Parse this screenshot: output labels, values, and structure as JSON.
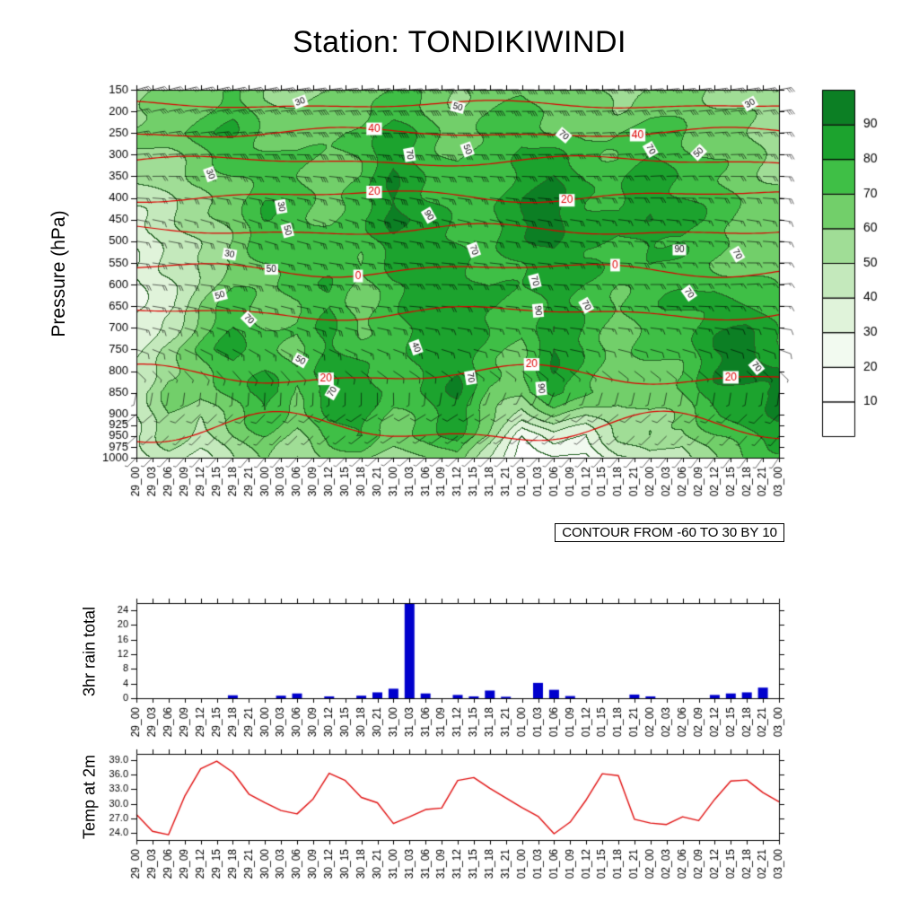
{
  "title": "Station: TONDIKIWINDI",
  "contour_note": "CONTOUR FROM -60 TO 30 BY 10",
  "axis": {
    "pressure_axis_label": "Pressure (hPa)",
    "rain_axis_label": "3hr rain total",
    "temp_axis_label": "Temp at 2m",
    "pressure_ticks": [
      150,
      200,
      250,
      300,
      350,
      400,
      450,
      500,
      550,
      600,
      650,
      700,
      750,
      800,
      850,
      900,
      925,
      950,
      975,
      1000
    ]
  },
  "colorbar": {
    "labels": [
      10,
      20,
      30,
      40,
      50,
      60,
      70,
      80,
      90
    ],
    "colors": [
      "#ffffff",
      "#ffffff",
      "#f2faf0",
      "#e0f3da",
      "#c4e9bc",
      "#a0dd96",
      "#72cf6a",
      "#3fbf46",
      "#1ca32e",
      "#0c7f24"
    ]
  },
  "chart_data": [
    {
      "type": "heatmap",
      "name": "humidity-time-pressure-section",
      "x": [
        "29_00",
        "29_03",
        "29_06",
        "29_09",
        "29_12",
        "29_15",
        "29_18",
        "29_21",
        "30_00",
        "30_03",
        "30_06",
        "30_09",
        "30_12",
        "30_15",
        "30_18",
        "30_21",
        "31_00",
        "31_03",
        "31_06",
        "31_09",
        "31_12",
        "31_15",
        "31_18",
        "31_21",
        "01_00",
        "01_03",
        "01_06",
        "01_09",
        "01_12",
        "01_15",
        "01_18",
        "01_21",
        "02_00",
        "02_03",
        "02_06",
        "02_09",
        "02_12",
        "02_15",
        "02_18",
        "02_21",
        "03_00"
      ],
      "x_index_step": 2,
      "pressure_levels_grid": [
        150,
        250,
        350,
        450,
        550,
        650,
        750,
        850,
        950,
        1000
      ],
      "fill_levels": [
        10,
        20,
        30,
        40,
        50,
        60,
        70,
        80,
        90
      ],
      "values": [
        [
          55,
          60,
          65,
          70,
          60,
          55,
          60,
          65,
          70,
          65,
          60,
          65,
          70,
          65,
          60,
          55,
          60,
          65,
          60,
          55,
          50
        ],
        [
          60,
          65,
          75,
          80,
          70,
          65,
          70,
          75,
          85,
          75,
          65,
          70,
          80,
          70,
          65,
          70,
          75,
          70,
          65,
          60,
          55
        ],
        [
          50,
          55,
          60,
          70,
          75,
          70,
          65,
          70,
          90,
          80,
          70,
          75,
          85,
          90,
          80,
          75,
          85,
          80,
          70,
          65,
          60
        ],
        [
          40,
          45,
          55,
          65,
          80,
          75,
          70,
          75,
          95,
          85,
          75,
          80,
          90,
          95,
          85,
          80,
          90,
          85,
          75,
          70,
          65
        ],
        [
          30,
          40,
          50,
          60,
          70,
          80,
          75,
          70,
          85,
          80,
          85,
          75,
          80,
          90,
          80,
          75,
          80,
          75,
          70,
          65,
          60
        ],
        [
          25,
          35,
          60,
          75,
          65,
          70,
          80,
          65,
          75,
          85,
          90,
          80,
          75,
          85,
          75,
          70,
          75,
          80,
          85,
          80,
          75
        ],
        [
          35,
          55,
          70,
          85,
          75,
          65,
          85,
          75,
          70,
          90,
          85,
          75,
          70,
          90,
          80,
          65,
          70,
          75,
          90,
          95,
          85
        ],
        [
          45,
          65,
          60,
          75,
          85,
          70,
          90,
          85,
          75,
          80,
          90,
          70,
          65,
          85,
          75,
          60,
          65,
          70,
          85,
          90,
          95
        ],
        [
          40,
          55,
          45,
          60,
          70,
          60,
          75,
          80,
          65,
          70,
          85,
          60,
          20,
          40,
          30,
          50,
          60,
          55,
          70,
          80,
          85
        ],
        [
          35,
          45,
          40,
          50,
          60,
          50,
          60,
          65,
          55,
          60,
          70,
          40,
          10,
          20,
          15,
          40,
          50,
          45,
          60,
          70,
          75
        ]
      ],
      "temp_contours": [
        {
          "value": -50,
          "pressure": 185,
          "amp": 4,
          "labels": []
        },
        {
          "value": -40,
          "pressure": 250,
          "amp": 5,
          "labels": [
            {
              "text": "40",
              "xf": 0.37
            },
            {
              "text": "40",
              "xf": 0.78
            }
          ]
        },
        {
          "value": -30,
          "pressure": 315,
          "amp": 5,
          "labels": []
        },
        {
          "value": -20,
          "pressure": 395,
          "amp": 6,
          "labels": [
            {
              "text": "20",
              "xf": 0.37
            },
            {
              "text": "20",
              "xf": 0.67
            }
          ]
        },
        {
          "value": -10,
          "pressure": 475,
          "amp": 6,
          "labels": []
        },
        {
          "value": 0,
          "pressure": 565,
          "amp": 7,
          "labels": [
            {
              "text": "0",
              "xf": 0.345
            },
            {
              "text": "0",
              "xf": 0.745
            }
          ]
        },
        {
          "value": 10,
          "pressure": 665,
          "amp": 7,
          "labels": []
        },
        {
          "value": 20,
          "pressure": 810,
          "amp": 10,
          "labels": [
            {
              "text": "20",
              "xf": 0.295
            },
            {
              "text": "20",
              "xf": 0.615
            },
            {
              "text": "20",
              "xf": 0.925
            }
          ]
        },
        {
          "value": 30,
          "pressure": 935,
          "amp": 16,
          "labels": []
        }
      ],
      "contour_labels": [
        {
          "text": "30",
          "xf": 0.255,
          "p": 178,
          "a": -20
        },
        {
          "text": "50",
          "xf": 0.5,
          "p": 190,
          "a": 15
        },
        {
          "text": "30",
          "xf": 0.955,
          "p": 182,
          "a": -30
        },
        {
          "text": "70",
          "xf": 0.665,
          "p": 255,
          "a": 40
        },
        {
          "text": "50",
          "xf": 0.515,
          "p": 288,
          "a": 70
        },
        {
          "text": "70",
          "xf": 0.425,
          "p": 300,
          "a": 80
        },
        {
          "text": "70",
          "xf": 0.8,
          "p": 288,
          "a": 60
        },
        {
          "text": "50",
          "xf": 0.875,
          "p": 295,
          "a": -45
        },
        {
          "text": "30",
          "xf": 0.115,
          "p": 345,
          "a": 70
        },
        {
          "text": "30",
          "xf": 0.225,
          "p": 420,
          "a": 80
        },
        {
          "text": "50",
          "xf": 0.235,
          "p": 475,
          "a": 75
        },
        {
          "text": "90",
          "xf": 0.455,
          "p": 440,
          "a": 60
        },
        {
          "text": "30",
          "xf": 0.145,
          "p": 530,
          "a": 10
        },
        {
          "text": "50",
          "xf": 0.21,
          "p": 565,
          "a": 0
        },
        {
          "text": "70",
          "xf": 0.525,
          "p": 520,
          "a": 70
        },
        {
          "text": "90",
          "xf": 0.845,
          "p": 520,
          "a": 0
        },
        {
          "text": "70",
          "xf": 0.935,
          "p": 530,
          "a": 60
        },
        {
          "text": "50",
          "xf": 0.13,
          "p": 625,
          "a": -15
        },
        {
          "text": "70",
          "xf": 0.175,
          "p": 680,
          "a": 45
        },
        {
          "text": "70",
          "xf": 0.62,
          "p": 592,
          "a": 75
        },
        {
          "text": "90",
          "xf": 0.625,
          "p": 660,
          "a": 85
        },
        {
          "text": "70",
          "xf": 0.7,
          "p": 648,
          "a": 60
        },
        {
          "text": "70",
          "xf": 0.86,
          "p": 620,
          "a": 55
        },
        {
          "text": "50",
          "xf": 0.255,
          "p": 775,
          "a": 30
        },
        {
          "text": "40",
          "xf": 0.435,
          "p": 745,
          "a": 70
        },
        {
          "text": "70",
          "xf": 0.52,
          "p": 815,
          "a": 80
        },
        {
          "text": "90",
          "xf": 0.63,
          "p": 840,
          "a": 85
        },
        {
          "text": "70",
          "xf": 0.305,
          "p": 848,
          "a": -60
        },
        {
          "text": "70",
          "xf": 0.965,
          "p": 790,
          "a": 50
        }
      ],
      "wind_barbs": {
        "time_indices": [
          0,
          8,
          16,
          24,
          32,
          40
        ],
        "pressures": [
          150,
          300,
          450,
          600,
          750,
          900,
          1000
        ],
        "dir_deg": [
          [
            75,
            80,
            85,
            90,
            85,
            80
          ],
          [
            85,
            90,
            95,
            90,
            85,
            90
          ],
          [
            100,
            110,
            105,
            100,
            95,
            100
          ],
          [
            95,
            100,
            90,
            95,
            90,
            85
          ],
          [
            110,
            120,
            110,
            100,
            105,
            110
          ],
          [
            230,
            225,
            240,
            235,
            230,
            225
          ],
          [
            225,
            220,
            230,
            225,
            220,
            215
          ]
        ],
        "speed_kt": [
          [
            35,
            40,
            45,
            40,
            35,
            30
          ],
          [
            25,
            30,
            35,
            30,
            25,
            25
          ],
          [
            15,
            20,
            25,
            20,
            15,
            15
          ],
          [
            20,
            25,
            25,
            20,
            20,
            15
          ],
          [
            10,
            15,
            15,
            10,
            10,
            10
          ],
          [
            8,
            10,
            8,
            10,
            8,
            8
          ],
          [
            5,
            5,
            5,
            5,
            5,
            5
          ]
        ]
      }
    },
    {
      "type": "bar",
      "title": "3hr rain total",
      "categories": [
        "29_00",
        "29_03",
        "29_06",
        "29_09",
        "29_12",
        "29_15",
        "29_18",
        "29_21",
        "30_00",
        "30_03",
        "30_06",
        "30_09",
        "30_12",
        "30_15",
        "30_18",
        "30_21",
        "31_00",
        "31_03",
        "31_06",
        "31_09",
        "31_12",
        "31_15",
        "31_18",
        "31_21",
        "01_00",
        "01_03",
        "01_06",
        "01_09",
        "01_12",
        "01_15",
        "01_18",
        "01_21",
        "02_00",
        "02_03",
        "02_06",
        "02_09",
        "02_12",
        "02_15",
        "02_18",
        "02_21",
        "03_00"
      ],
      "values": [
        0,
        0,
        0,
        0,
        0,
        0,
        0.8,
        0,
        0,
        0.7,
        1.3,
        0,
        0.5,
        0,
        0.7,
        1.6,
        2.6,
        26,
        1.3,
        0,
        0.9,
        0.5,
        2.1,
        0.4,
        0,
        4.2,
        2.3,
        0.6,
        0,
        0,
        0,
        1.0,
        0.5,
        0,
        0,
        0,
        0.9,
        1.3,
        1.6,
        2.9,
        0
      ],
      "ylim": [
        0,
        26
      ],
      "yticks": [
        0,
        4,
        8,
        12,
        16,
        20,
        24
      ],
      "bar_color": "#0000cd"
    },
    {
      "type": "line",
      "title": "Temp at 2m",
      "categories": [
        "29_00",
        "29_03",
        "29_06",
        "29_09",
        "29_12",
        "29_15",
        "29_18",
        "29_21",
        "30_00",
        "30_03",
        "30_06",
        "30_09",
        "30_12",
        "30_15",
        "30_18",
        "30_21",
        "31_00",
        "31_03",
        "31_06",
        "31_09",
        "31_12",
        "31_15",
        "31_18",
        "31_21",
        "01_00",
        "01_03",
        "01_06",
        "01_09",
        "01_12",
        "01_15",
        "01_18",
        "01_21",
        "02_00",
        "02_03",
        "02_06",
        "02_09",
        "02_12",
        "02_15",
        "02_18",
        "02_21",
        "03_00"
      ],
      "values": [
        27.8,
        24.3,
        23.6,
        31.5,
        37.2,
        38.8,
        36.5,
        32.0,
        30.2,
        28.6,
        27.9,
        31.0,
        36.3,
        34.8,
        31.3,
        30.2,
        25.9,
        27.3,
        28.8,
        29.1,
        34.8,
        35.4,
        33.2,
        31.2,
        29.2,
        27.4,
        23.8,
        26.2,
        30.8,
        36.2,
        35.8,
        26.8,
        26.0,
        25.7,
        27.3,
        26.5,
        30.9,
        34.7,
        34.9,
        32.3,
        30.4
      ],
      "ylim": [
        22.5,
        40.3
      ],
      "yticks": [
        "24.0",
        "27.0",
        "30.0",
        "33.0",
        "36.0",
        "39.0"
      ],
      "line_color": "#e01010"
    }
  ]
}
